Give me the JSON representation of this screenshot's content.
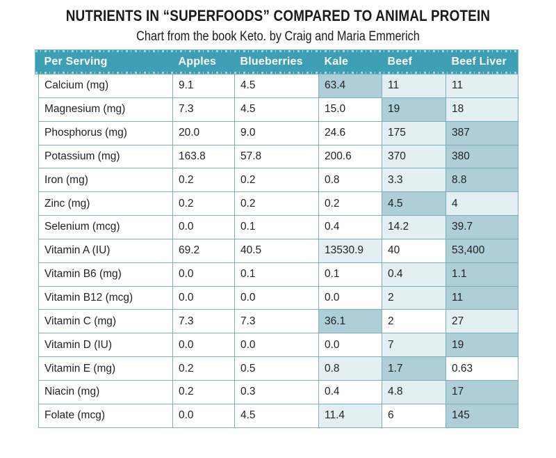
{
  "title": "NUTRIENTS IN “SUPERFOODS” COMPARED TO ANIMAL PROTEIN",
  "subtitle": "Chart from the book Keto. by Craig and Maria Emmerich",
  "colors": {
    "header": "#3d9fb3",
    "highlight_dark": "#aecfd8",
    "highlight_light": "#e3eff3",
    "border": "#7aaebb"
  },
  "chart_data": {
    "type": "table",
    "title": "NUTRIENTS IN “SUPERFOODS” COMPARED TO ANIMAL PROTEIN",
    "subtitle": "Chart from the book Keto. by Craig and Maria Emmerich",
    "columns": [
      "Per Serving",
      "Apples",
      "Blueberries",
      "Kale",
      "Beef",
      "Beef Liver"
    ],
    "rows": [
      {
        "label": "Calcium (mg)",
        "values": [
          "9.1",
          "4.5",
          "63.4",
          "11",
          "11"
        ],
        "highlight": [
          "",
          "",
          "dark",
          "light",
          "light"
        ]
      },
      {
        "label": "Magnesium (mg)",
        "values": [
          "7.3",
          "4.5",
          "15.0",
          "19",
          "18"
        ],
        "highlight": [
          "",
          "",
          "",
          "dark",
          "light"
        ]
      },
      {
        "label": "Phosphorus (mg)",
        "values": [
          "20.0",
          "9.0",
          "24.6",
          "175",
          "387"
        ],
        "highlight": [
          "",
          "",
          "",
          "light",
          "dark"
        ]
      },
      {
        "label": "Potassium (mg)",
        "values": [
          "163.8",
          "57.8",
          "200.6",
          "370",
          "380"
        ],
        "highlight": [
          "",
          "",
          "",
          "light",
          "dark"
        ]
      },
      {
        "label": "Iron (mg)",
        "values": [
          "0.2",
          "0.2",
          "0.8",
          "3.3",
          "8.8"
        ],
        "highlight": [
          "",
          "",
          "",
          "light",
          "dark"
        ]
      },
      {
        "label": "Zinc (mg)",
        "values": [
          "0.2",
          "0.2",
          "0.2",
          "4.5",
          "4"
        ],
        "highlight": [
          "",
          "",
          "",
          "dark",
          "light"
        ]
      },
      {
        "label": "Selenium (mcg)",
        "values": [
          "0.0",
          "0.1",
          "0.4",
          "14.2",
          "39.7"
        ],
        "highlight": [
          "",
          "",
          "",
          "light",
          "dark"
        ]
      },
      {
        "label": "Vitamin A (IU)",
        "values": [
          "69.2",
          "40.5",
          "13530.9",
          "40",
          "53,400"
        ],
        "highlight": [
          "",
          "",
          "light",
          "",
          "dark"
        ]
      },
      {
        "label": "Vitamin B6 (mg)",
        "values": [
          "0.0",
          "0.1",
          "0.1",
          "0.4",
          "1.1"
        ],
        "highlight": [
          "",
          "",
          "",
          "light",
          "dark"
        ]
      },
      {
        "label": "Vitamin B12 (mcg)",
        "values": [
          "0.0",
          "0.0",
          "0.0",
          "2",
          "11"
        ],
        "highlight": [
          "",
          "",
          "",
          "light",
          "dark"
        ]
      },
      {
        "label": "Vitamin C (mg)",
        "values": [
          "7.3",
          "7.3",
          "36.1",
          "2",
          "27"
        ],
        "highlight": [
          "",
          "",
          "dark",
          "",
          "light"
        ]
      },
      {
        "label": "Vitamin D (IU)",
        "values": [
          "0.0",
          "0.0",
          "0.0",
          "7",
          "19"
        ],
        "highlight": [
          "",
          "",
          "",
          "light",
          "dark"
        ]
      },
      {
        "label": "Vitamin E (mg)",
        "values": [
          "0.2",
          "0.5",
          "0.8",
          "1.7",
          "0.63"
        ],
        "highlight": [
          "",
          "",
          "light",
          "dark",
          ""
        ]
      },
      {
        "label": "Niacin (mg)",
        "values": [
          "0.2",
          "0.3",
          "0.4",
          "4.8",
          "17"
        ],
        "highlight": [
          "",
          "",
          "",
          "light",
          "dark"
        ]
      },
      {
        "label": "Folate (mcg)",
        "values": [
          "0.0",
          "4.5",
          "11.4",
          "6",
          "145"
        ],
        "highlight": [
          "",
          "",
          "light",
          "",
          "dark"
        ]
      }
    ]
  }
}
